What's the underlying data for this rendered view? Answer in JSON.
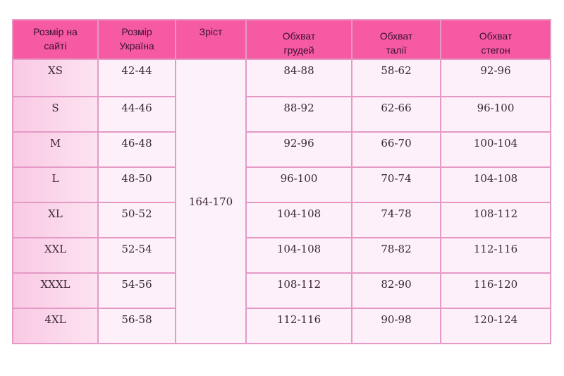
{
  "table": {
    "headers": [
      "Розмір на сайті",
      "Розмір Україна",
      "Зріст",
      "Обхват грудей",
      "Обхват талії",
      "Обхват стегон"
    ],
    "height_value": "164-170",
    "rows": [
      {
        "site": "XS",
        "ua": "42-44",
        "chest": "84-88",
        "waist": "58-62",
        "hips": "92-96"
      },
      {
        "site": "S",
        "ua": "44-46",
        "chest": "88-92",
        "waist": "62-66",
        "hips": "96-100"
      },
      {
        "site": "M",
        "ua": "46-48",
        "chest": "92-96",
        "waist": "66-70",
        "hips": "100-104"
      },
      {
        "site": "L",
        "ua": "48-50",
        "chest": "96-100",
        "waist": "70-74",
        "hips": "104-108"
      },
      {
        "site": "XL",
        "ua": "50-52",
        "chest": "104-108",
        "waist": "74-78",
        "hips": "108-112"
      },
      {
        "site": "XXL",
        "ua": "52-54",
        "chest": "104-108",
        "waist": "78-82",
        "hips": "112-116"
      },
      {
        "site": "XXXL",
        "ua": "54-56",
        "chest": "108-112",
        "waist": "82-90",
        "hips": "116-120"
      },
      {
        "site": "4XL",
        "ua": "56-58",
        "chest": "112-116",
        "waist": "90-98",
        "hips": "120-124"
      }
    ]
  },
  "colors": {
    "header": "#f65aa2",
    "cell": "#fdf0f8",
    "first_column": "#f9c9e4",
    "border": "#e59ac6"
  }
}
